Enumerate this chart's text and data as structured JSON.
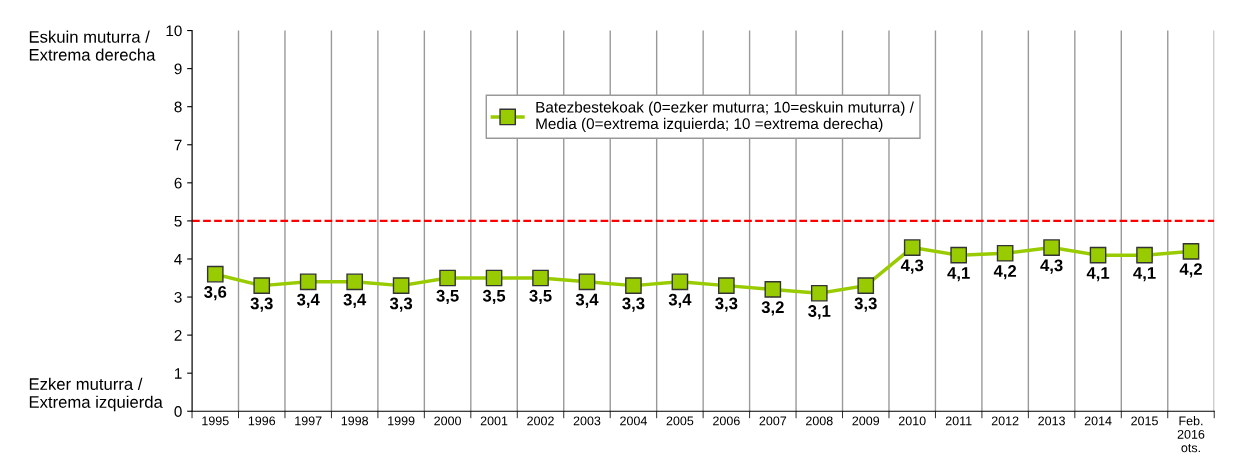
{
  "chart_data": {
    "type": "line",
    "categories": [
      "1995",
      "1996",
      "1997",
      "1998",
      "1999",
      "2000",
      "2001",
      "2002",
      "2003",
      "2004",
      "2005",
      "2006",
      "2007",
      "2008",
      "2009",
      "2010",
      "2011",
      "2012",
      "2013",
      "2014",
      "2015",
      "Feb.\n2016\nots."
    ],
    "series": [
      {
        "name": "Batezbestekoak (0=ezker muturra; 10=eskuin muturra) /\nMedia (0=extrema izquierda; 10 =extrema derecha)",
        "color": "#99cc00",
        "values": [
          3.6,
          3.3,
          3.4,
          3.4,
          3.3,
          3.5,
          3.5,
          3.5,
          3.4,
          3.3,
          3.4,
          3.3,
          3.2,
          3.1,
          3.3,
          4.3,
          4.1,
          4.15,
          4.3,
          4.1,
          4.1,
          4.2
        ],
        "value_labels": [
          "3,6",
          "3,3",
          "3,4",
          "3,4",
          "3,3",
          "3,5",
          "3,5",
          "3,5",
          "3,4",
          "3,3",
          "3,4",
          "3,3",
          "3,2",
          "3,1",
          "3,3",
          "4,3",
          "4,1",
          "4,2",
          "4,3",
          "4,1",
          "4,1",
          "4,2"
        ]
      }
    ],
    "ylim": [
      0,
      10
    ],
    "yticks": [
      0,
      1,
      2,
      3,
      4,
      5,
      6,
      7,
      8,
      9,
      10
    ],
    "ref_lines": [
      {
        "axis": "y",
        "value": 5,
        "color": "#ff0000",
        "line_style": "dashed"
      }
    ],
    "annotations": [
      "Eskuin muturra /\nExtrema derecha",
      "Ezker muturra /\nExtrema izquierda"
    ],
    "grid": "x",
    "legend": "top",
    "marker": "square",
    "line_style": "solid"
  }
}
